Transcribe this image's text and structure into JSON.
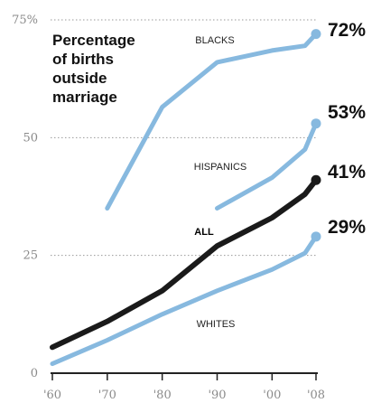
{
  "chart_data": {
    "type": "line",
    "title": "Percentage of births outside marriage",
    "title_lines": [
      "Percentage",
      "of births",
      "outside",
      "marriage"
    ],
    "xlabel": "",
    "ylabel": "",
    "x_ticks": [
      "'60",
      "'70",
      "'80",
      "'90",
      "'00",
      "'08"
    ],
    "x_tick_values": [
      1960,
      1970,
      1980,
      1990,
      2000,
      2008
    ],
    "xlim": [
      1960,
      2008
    ],
    "y_ticks": [
      0,
      25,
      50,
      75
    ],
    "y_tick_labels": [
      "0",
      "25",
      "50",
      "75%"
    ],
    "ylim": [
      0,
      75
    ],
    "grid": true,
    "series": [
      {
        "name": "BLACKS",
        "color": "#87b9df",
        "end_label": "72%",
        "x": [
          1970,
          1980,
          1990,
          2000,
          2006,
          2008
        ],
        "y": [
          35,
          56.5,
          66,
          68.5,
          69.5,
          72
        ]
      },
      {
        "name": "HISPANICS",
        "color": "#87b9df",
        "end_label": "53%",
        "x": [
          1990,
          2000,
          2006,
          2008
        ],
        "y": [
          35,
          41.5,
          47.5,
          53
        ]
      },
      {
        "name": "ALL",
        "color": "#1a1a1a",
        "end_label": "41%",
        "x": [
          1960,
          1970,
          1980,
          1990,
          2000,
          2006,
          2008
        ],
        "y": [
          5.5,
          11,
          17.5,
          27,
          33,
          38,
          41
        ]
      },
      {
        "name": "WHITES",
        "color": "#87b9df",
        "end_label": "29%",
        "x": [
          1960,
          1970,
          1980,
          1990,
          2000,
          2006,
          2008
        ],
        "y": [
          2,
          7,
          12.5,
          17.5,
          22,
          25.5,
          29
        ]
      }
    ]
  }
}
